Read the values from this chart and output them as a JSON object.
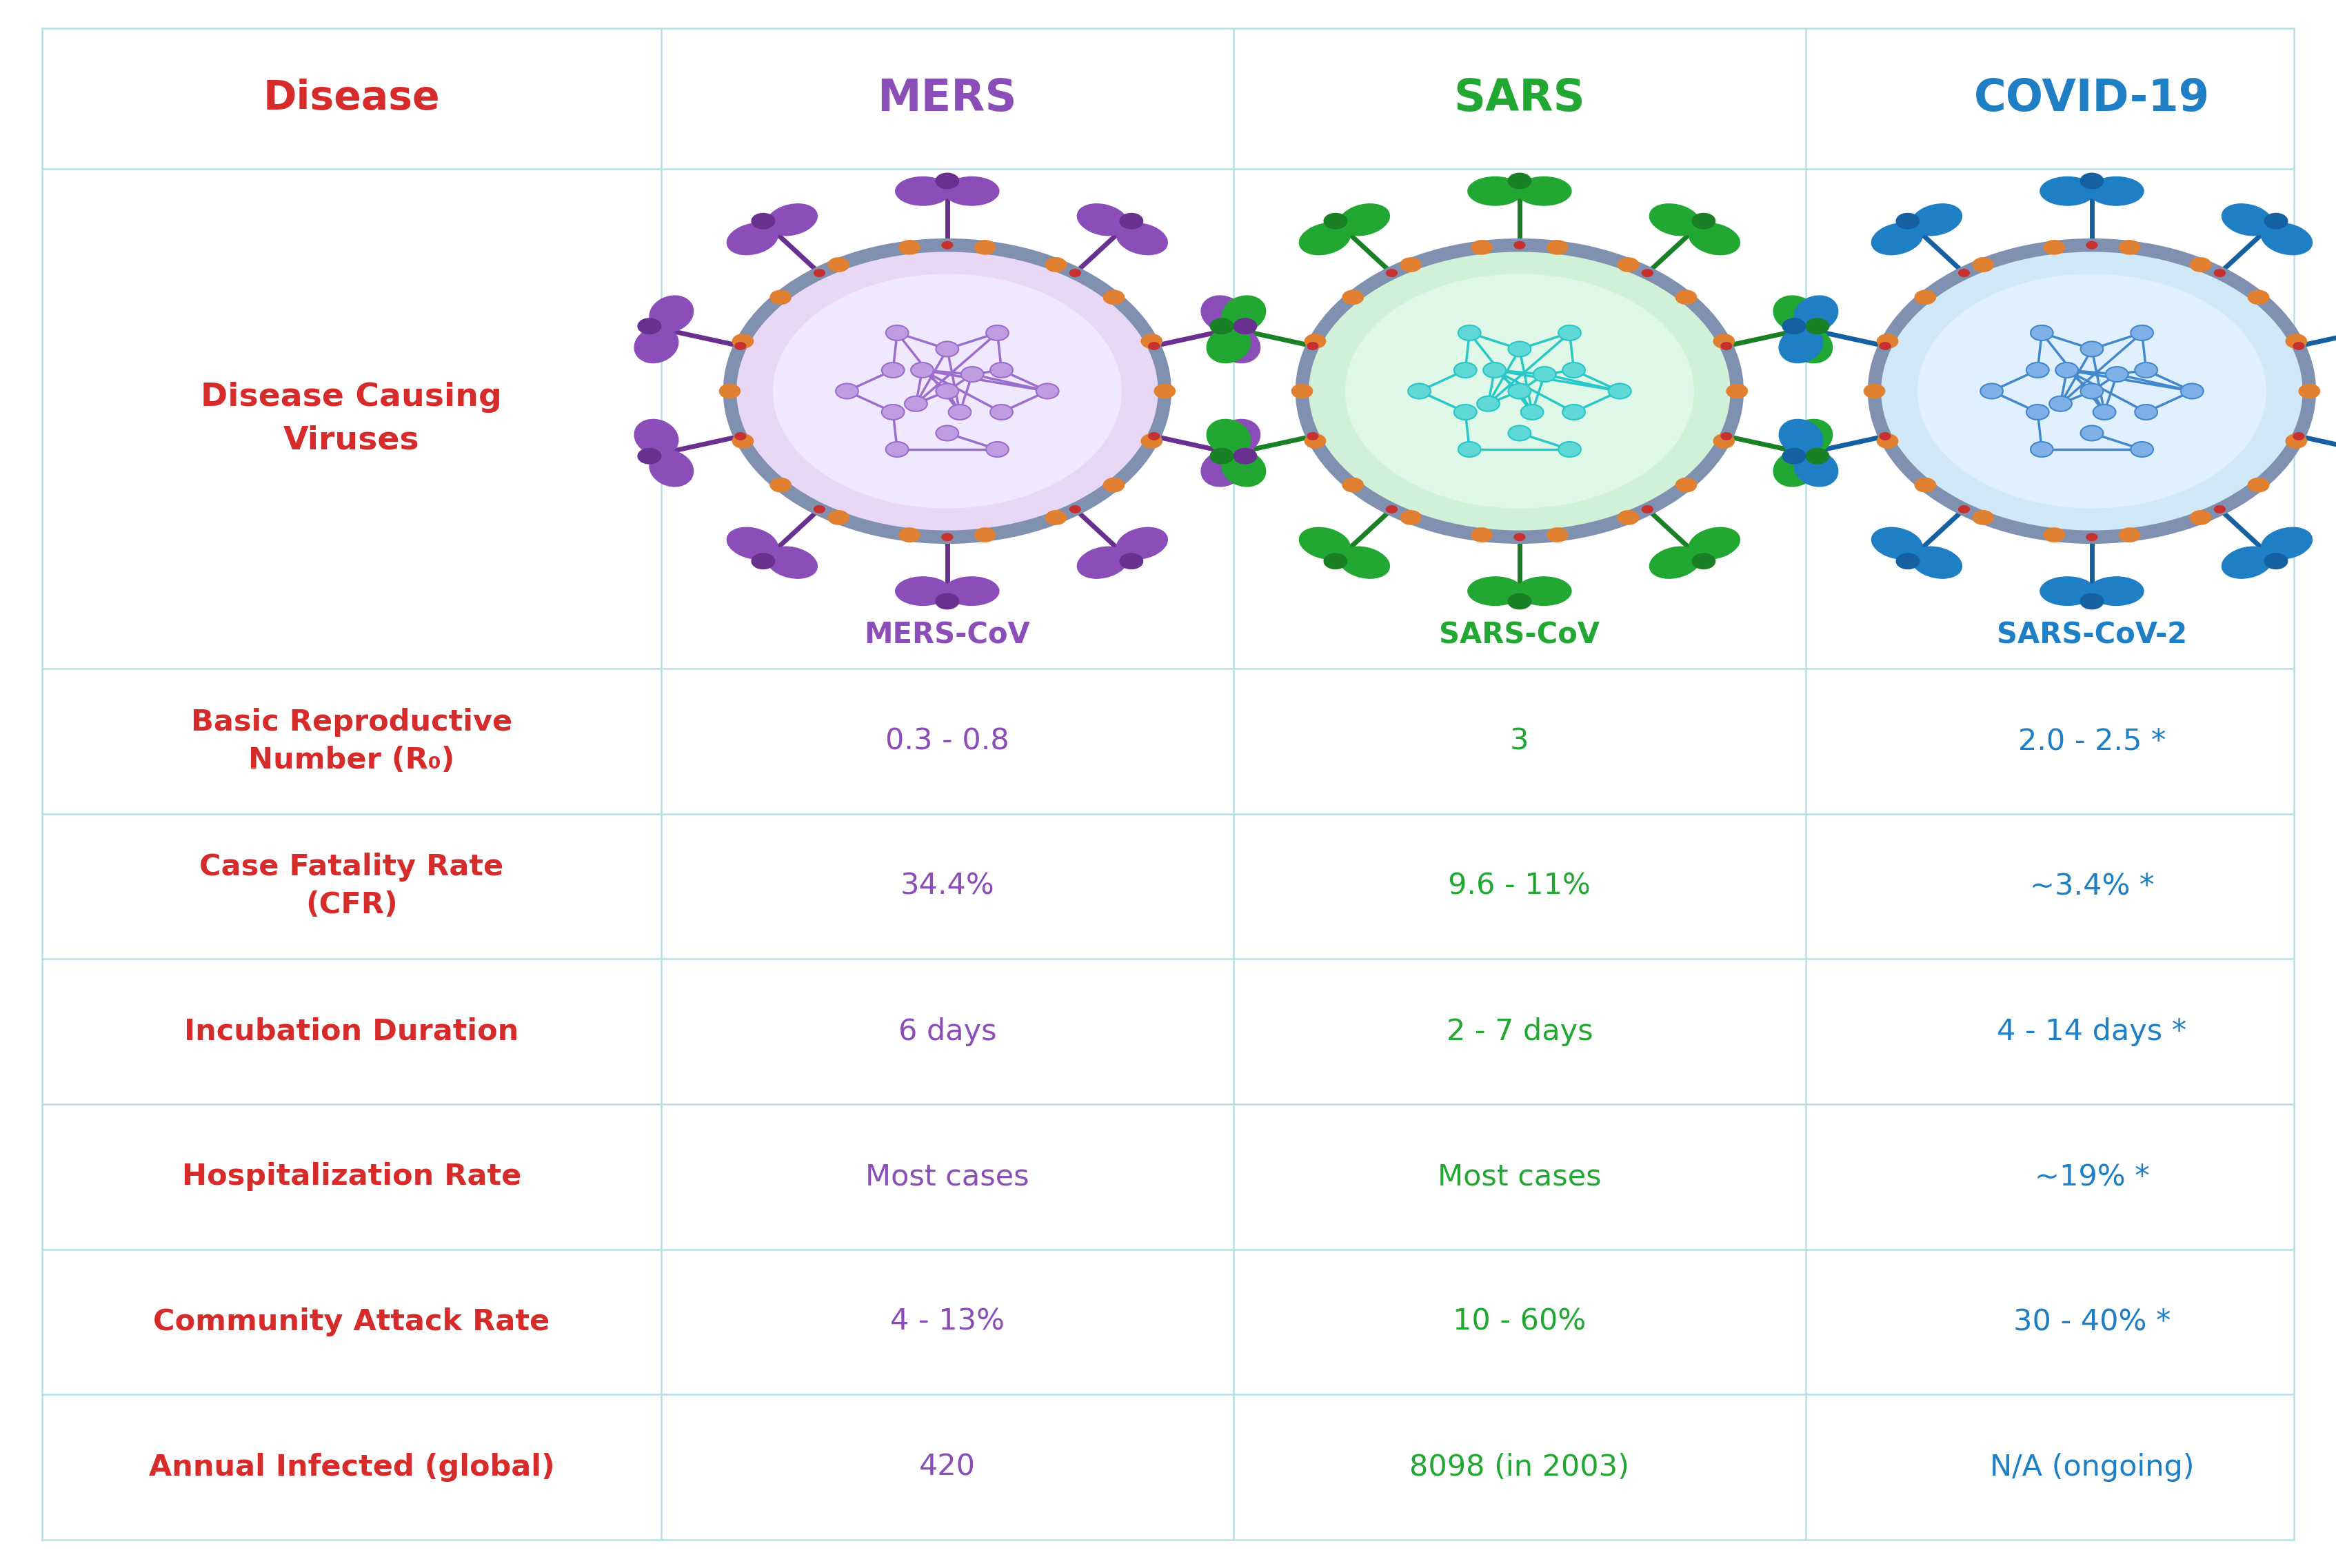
{
  "background_color": "#ffffff",
  "border_color": "#b8dde2",
  "header_row": {
    "label": "Disease",
    "label_color": "#d62b2b",
    "cols": [
      "MERS",
      "SARS",
      "COVID-19"
    ],
    "col_colors": [
      "#8b4db8",
      "#22a832",
      "#1f7fc4"
    ]
  },
  "rows": [
    {
      "label": "Disease Causing\nViruses",
      "label_color": "#d62b2b",
      "values": [
        "MERS-CoV",
        "SARS-CoV",
        "SARS-CoV-2"
      ],
      "value_colors": [
        "#8b4db8",
        "#22a832",
        "#1f7fc4"
      ],
      "is_virus_row": true
    },
    {
      "label": "Basic Reproductive\nNumber (R₀)",
      "label_color": "#d62b2b",
      "values": [
        "0.3 - 0.8",
        "3",
        "2.0 - 2.5 *"
      ],
      "value_colors": [
        "#8b4db8",
        "#22a832",
        "#1f7fc4"
      ],
      "is_virus_row": false
    },
    {
      "label": "Case Fatality Rate\n(CFR)",
      "label_color": "#d62b2b",
      "values": [
        "34.4%",
        "9.6 - 11%",
        "~3.4% *"
      ],
      "value_colors": [
        "#8b4db8",
        "#22a832",
        "#1f7fc4"
      ],
      "is_virus_row": false
    },
    {
      "label": "Incubation Duration",
      "label_color": "#d62b2b",
      "values": [
        "6 days",
        "2 - 7 days",
        "4 - 14 days *"
      ],
      "value_colors": [
        "#8b4db8",
        "#22a832",
        "#1f7fc4"
      ],
      "is_virus_row": false
    },
    {
      "label": "Hospitalization Rate",
      "label_color": "#d62b2b",
      "values": [
        "Most cases",
        "Most cases",
        "~19% *"
      ],
      "value_colors": [
        "#8b4db8",
        "#22a832",
        "#1f7fc4"
      ],
      "is_virus_row": false
    },
    {
      "label": "Community Attack Rate",
      "label_color": "#d62b2b",
      "values": [
        "4 - 13%",
        "10 - 60%",
        "30 - 40% *"
      ],
      "value_colors": [
        "#8b4db8",
        "#22a832",
        "#1f7fc4"
      ],
      "is_virus_row": false
    },
    {
      "label": "Annual Infected (global)",
      "label_color": "#d62b2b",
      "values": [
        "420",
        "8098 (in 2003)",
        "N/A (ongoing)"
      ],
      "value_colors": [
        "#8b4db8",
        "#22a832",
        "#1f7fc4"
      ],
      "is_virus_row": false
    }
  ],
  "virus_main_colors": [
    "#8b4db8",
    "#22a832",
    "#1f7fc4"
  ],
  "virus_dark_colors": [
    "#6a3090",
    "#1a8026",
    "#1560a0"
  ],
  "virus_body_colors": [
    "#e8d8f5",
    "#d0f0d8",
    "#d0e8f8"
  ],
  "virus_inner_colors": [
    "#f0e8ff",
    "#e0f8e8",
    "#e0f0ff"
  ],
  "virus_rna_colors": [
    "#9b6dcc",
    "#26c8c8",
    "#4488cc"
  ],
  "virus_node_colors": [
    "#c09de0",
    "#60d8d8",
    "#80b0e8"
  ],
  "ring_color": "#8090b0",
  "ring_clasp_colors": [
    "#e08030",
    "#e08030",
    "#e08030"
  ],
  "ring_accent_colors": [
    "#c83030",
    "#c83030",
    "#c83030"
  ]
}
